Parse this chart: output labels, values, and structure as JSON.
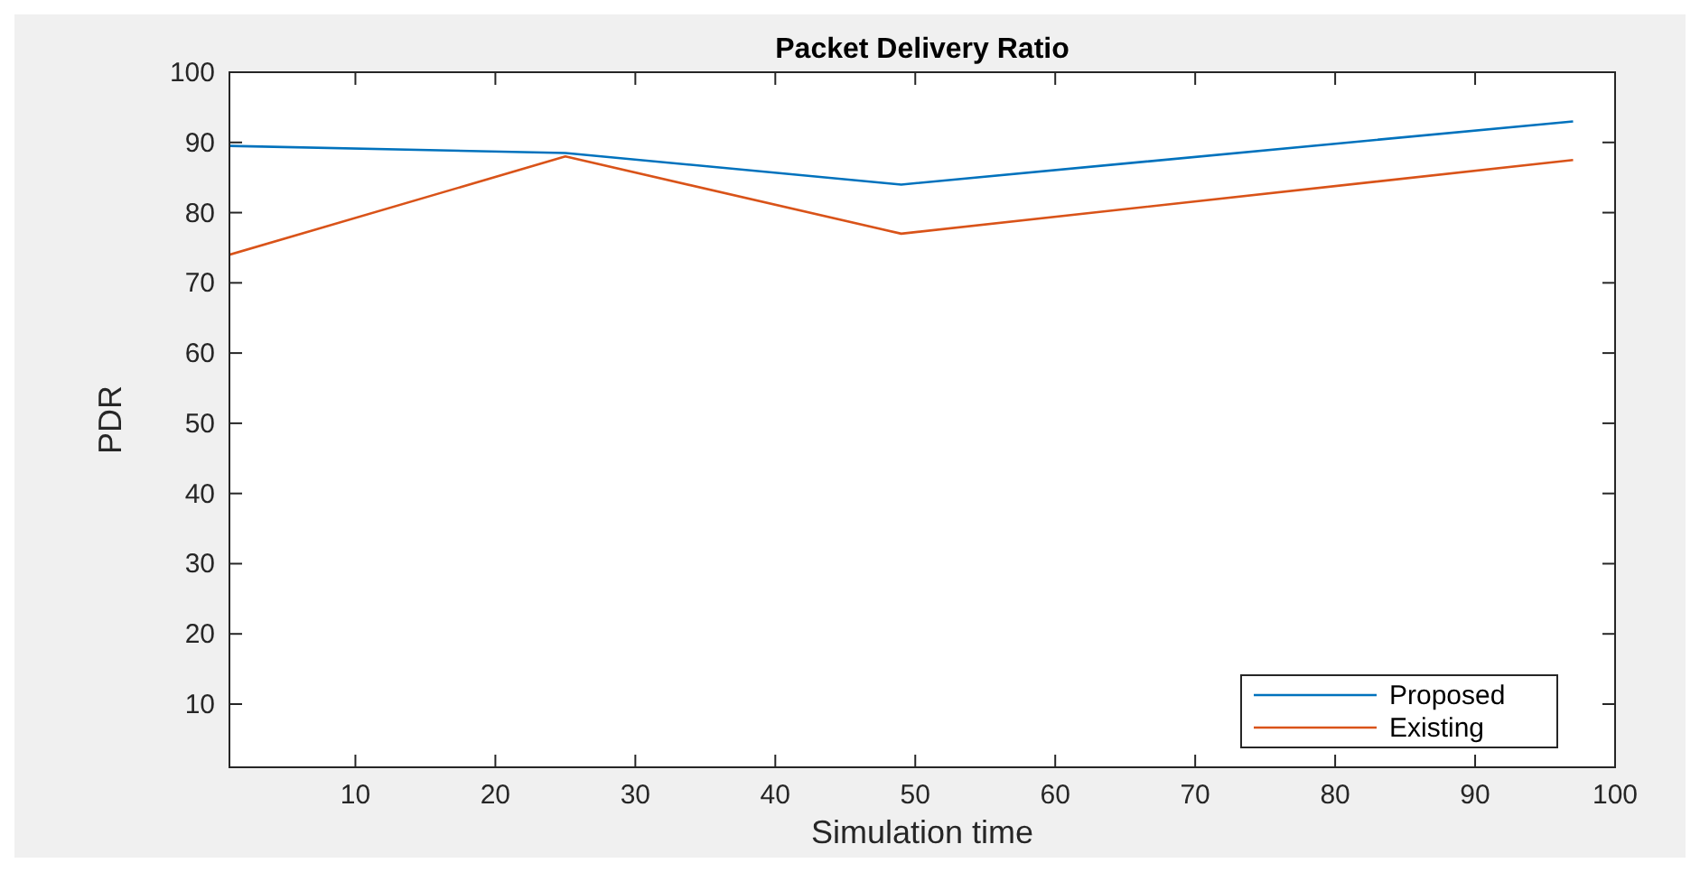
{
  "chart_data": {
    "type": "line",
    "title": "Packet Delivery Ratio",
    "xlabel": "Simulation time",
    "ylabel": "PDR",
    "x": [
      1,
      25,
      49,
      97
    ],
    "series": [
      {
        "name": "Proposed",
        "color": "#0072bd",
        "values": [
          89.5,
          88.5,
          84,
          93
        ]
      },
      {
        "name": "Existing",
        "color": "#d95319",
        "values": [
          74,
          88,
          77,
          87.5
        ]
      }
    ],
    "xlim": [
      1,
      100
    ],
    "xticks": [
      10,
      20,
      30,
      40,
      50,
      60,
      70,
      80,
      90,
      100
    ],
    "ylim": [
      1,
      100
    ],
    "yticks": [
      10,
      20,
      30,
      40,
      50,
      60,
      70,
      80,
      90,
      100
    ],
    "legend": "bottom right",
    "grid": false,
    "marker": "none",
    "line_style": "solid"
  }
}
